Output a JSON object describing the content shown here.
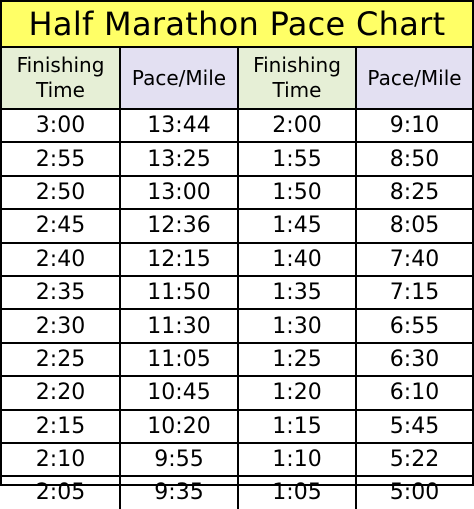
{
  "title": "Half Marathon Pace Chart",
  "headers": {
    "finish_line1": "Finishing",
    "finish_line2": "Time",
    "pace": "Pace/Mile"
  },
  "colors": {
    "title_bg": "#ffff66",
    "finish_header_bg": "#e6efd6",
    "pace_header_bg": "#e3e0f2"
  },
  "rows": [
    {
      "t1": "3:00",
      "p1": "13:44",
      "t2": "2:00",
      "p2": "9:10"
    },
    {
      "t1": "2:55",
      "p1": "13:25",
      "t2": "1:55",
      "p2": "8:50"
    },
    {
      "t1": "2:50",
      "p1": "13:00",
      "t2": "1:50",
      "p2": "8:25"
    },
    {
      "t1": "2:45",
      "p1": "12:36",
      "t2": "1:45",
      "p2": "8:05"
    },
    {
      "t1": "2:40",
      "p1": "12:15",
      "t2": "1:40",
      "p2": "7:40"
    },
    {
      "t1": "2:35",
      "p1": "11:50",
      "t2": "1:35",
      "p2": "7:15"
    },
    {
      "t1": "2:30",
      "p1": "11:30",
      "t2": "1:30",
      "p2": "6:55"
    },
    {
      "t1": "2:25",
      "p1": "11:05",
      "t2": "1:25",
      "p2": "6:30"
    },
    {
      "t1": "2:20",
      "p1": "10:45",
      "t2": "1:20",
      "p2": "6:10"
    },
    {
      "t1": "2:15",
      "p1": "10:20",
      "t2": "1:15",
      "p2": "5:45"
    },
    {
      "t1": "2:10",
      "p1": "9:55",
      "t2": "1:10",
      "p2": "5:22"
    },
    {
      "t1": "2:05",
      "p1": "9:35",
      "t2": "1:05",
      "p2": "5:00"
    }
  ]
}
